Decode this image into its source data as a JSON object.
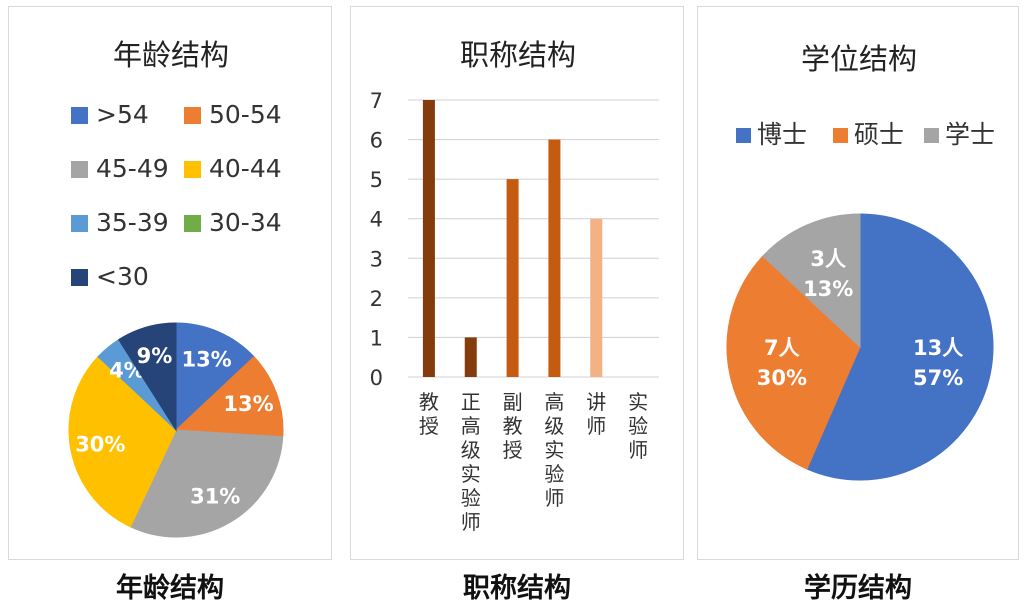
{
  "captions": [
    "年龄结构",
    "职称结构",
    "学历结构"
  ],
  "chart_data": [
    {
      "type": "pie",
      "title": "年龄结构",
      "legend": [
        ">54",
        "50-54",
        "45-49",
        "40-44",
        "35-39",
        "30-34",
        "<30"
      ],
      "colors": [
        "#4472c4",
        "#ed7d31",
        "#a5a5a5",
        "#ffc000",
        "#5b9bd5",
        "#70ad47",
        "#264478"
      ],
      "values": [
        13,
        13,
        31,
        30,
        4,
        0,
        9
      ],
      "labels": [
        "13%",
        "13%",
        "31%",
        "30%",
        "4%",
        "",
        "9%"
      ],
      "legend_position": "top"
    },
    {
      "type": "bar",
      "title": "职称结构",
      "categories": [
        "教授",
        "正高级实验师",
        "副教授",
        "高级实验师",
        "讲师",
        "实验师"
      ],
      "values": [
        7,
        1,
        5,
        6,
        4,
        0
      ],
      "colors": [
        "#843c0c",
        "#843c0c",
        "#c55a11",
        "#c55a11",
        "#f4b183",
        "#f4b183"
      ],
      "yticks": [
        "0",
        "1",
        "2",
        "3",
        "4",
        "5",
        "6",
        "7"
      ],
      "ylim": [
        0,
        7
      ],
      "grid": true
    },
    {
      "type": "pie",
      "title": "学位结构",
      "legend": [
        "博士",
        "硕士",
        "学士"
      ],
      "colors": [
        "#4472c4",
        "#ed7d31",
        "#a5a5a5"
      ],
      "values": [
        13,
        7,
        3
      ],
      "labels": [
        [
          "13人",
          "57%"
        ],
        [
          "7人",
          "30%"
        ],
        [
          "3人",
          "13%"
        ]
      ],
      "legend_position": "top"
    }
  ]
}
